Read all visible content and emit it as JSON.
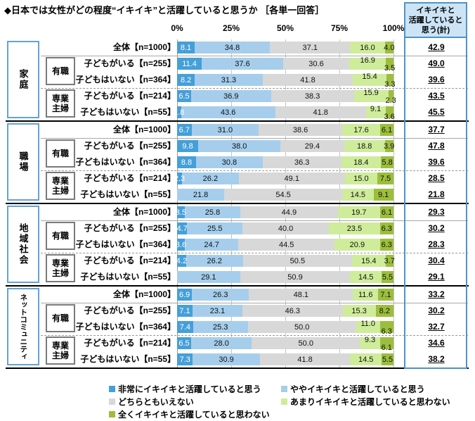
{
  "title": "◆日本では女性がどの程度“イキイキ”と活躍していると思うか ［各単一回答］",
  "axis": {
    "ticks": [
      "0%",
      "25%",
      "50%",
      "75%",
      "100%"
    ]
  },
  "summary": {
    "header_lines": [
      "イキイキと",
      "活躍していると",
      "思う(計)"
    ]
  },
  "colors": {
    "seg1_dark_blue": "#459fd9",
    "seg2_light_blue": "#a6ceec",
    "seg3_gray": "#d8d8d8",
    "seg4_light_green": "#cfec9b",
    "seg5_olive_green": "#9cbe3c",
    "summary_header_bg": "#cce4f6",
    "frame_blue": "#4e93c8"
  },
  "legend": [
    {
      "label": "非常にイキイキと活躍していると思う",
      "color_key": "seg1_dark_blue",
      "col": 0,
      "row": 0
    },
    {
      "label": "ややイキイキと活躍していると思う",
      "color_key": "seg2_light_blue",
      "col": 1,
      "row": 0
    },
    {
      "label": "どちらともいえない",
      "color_key": "seg3_gray",
      "col": 0,
      "row": 1
    },
    {
      "label": "あまりイキイキと活躍していると思わない",
      "color_key": "seg4_light_green",
      "col": 1,
      "row": 1
    },
    {
      "label": "全くイキイキと活躍していると思わない",
      "color_key": "seg5_olive_green",
      "col": 0,
      "row": 2
    }
  ],
  "group_labels": [
    "有職",
    "専業主婦"
  ],
  "chart_data": {
    "type": "bar",
    "orientation": "horizontal-stacked",
    "x_range": [
      0,
      100
    ],
    "grid": true,
    "legend_position": "bottom",
    "series_names": [
      "非常にイキイキと活躍していると思う",
      "ややイキイキと活躍していると思う",
      "どちらともいえない",
      "あまりイキイキと活躍していると思わない",
      "全くイキイキと活躍していると思わない"
    ],
    "sections": [
      {
        "name": "家庭",
        "rows": [
          {
            "label": "全体【n=1000】",
            "values": [
              8.1,
              34.8,
              37.1,
              16.0,
              4.0
            ],
            "total": 42.9,
            "stagger": false
          },
          {
            "label": "子どもがいる【n=255】",
            "values": [
              11.4,
              37.6,
              30.6,
              16.9,
              3.5
            ],
            "total": 49.0,
            "stagger": true
          },
          {
            "label": "子どもはいない【n=364】",
            "values": [
              8.2,
              31.3,
              41.8,
              15.4,
              3.3
            ],
            "total": 39.6,
            "stagger": true
          },
          {
            "label": "子どもがいる【n=214】",
            "values": [
              6.5,
              36.9,
              38.3,
              15.9,
              2.3
            ],
            "total": 43.5,
            "stagger": true
          },
          {
            "label": "子どもはいない【n=55】",
            "values": [
              1.8,
              43.6,
              41.8,
              9.1,
              3.6
            ],
            "total": 45.5,
            "stagger": true
          }
        ]
      },
      {
        "name": "職場",
        "rows": [
          {
            "label": "全体【n=1000】",
            "values": [
              6.7,
              31.0,
              38.6,
              17.6,
              6.1
            ],
            "total": 37.7,
            "stagger": false
          },
          {
            "label": "子どもがいる【n=255】",
            "values": [
              9.8,
              38.0,
              29.4,
              18.8,
              3.9
            ],
            "total": 47.8,
            "stagger": false
          },
          {
            "label": "子どもはいない【n=364】",
            "values": [
              8.8,
              30.8,
              36.3,
              18.4,
              5.8
            ],
            "total": 39.6,
            "stagger": false
          },
          {
            "label": "子どもがいる【n=214】",
            "values": [
              2.3,
              26.2,
              49.1,
              15.0,
              7.5
            ],
            "total": 28.5,
            "stagger": false
          },
          {
            "label": "子どもはいない【n=55】",
            "values": [
              0,
              21.8,
              54.5,
              14.5,
              9.1
            ],
            "total": 21.8,
            "stagger": false
          }
        ]
      },
      {
        "name": "地域社会",
        "rows": [
          {
            "label": "全体【n=1000】",
            "values": [
              3.5,
              25.8,
              44.9,
              19.7,
              6.1
            ],
            "total": 29.3,
            "stagger": false
          },
          {
            "label": "子どもがいる【n=255】",
            "values": [
              4.7,
              25.5,
              40.0,
              23.5,
              6.3
            ],
            "total": 30.2,
            "stagger": false
          },
          {
            "label": "子どもはいない【n=364】",
            "values": [
              3.6,
              24.7,
              44.5,
              20.9,
              6.3
            ],
            "total": 28.3,
            "stagger": false
          },
          {
            "label": "子どもがいる【n=214】",
            "values": [
              4.2,
              26.2,
              50.5,
              15.4,
              3.7
            ],
            "total": 30.4,
            "stagger": false
          },
          {
            "label": "子どもはいない【n=55】",
            "values": [
              0,
              29.1,
              50.9,
              14.5,
              5.5
            ],
            "total": 29.1,
            "stagger": false
          }
        ]
      },
      {
        "name": "ネットコミュニティ",
        "rows": [
          {
            "label": "全体【n=1000】",
            "values": [
              6.9,
              26.3,
              48.1,
              11.6,
              7.1
            ],
            "total": 33.2,
            "stagger": false
          },
          {
            "label": "子どもがいる【n=255】",
            "values": [
              7.1,
              23.1,
              46.3,
              15.3,
              8.2
            ],
            "total": 30.2,
            "stagger": false
          },
          {
            "label": "子どもはいない【n=364】",
            "values": [
              7.4,
              25.3,
              50.0,
              11.0,
              6.3
            ],
            "total": 32.7,
            "stagger": true
          },
          {
            "label": "子どもがいる【n=214】",
            "values": [
              6.5,
              28.0,
              50.0,
              9.3,
              6.1
            ],
            "total": 34.6,
            "stagger": true
          },
          {
            "label": "子どもはいない【n=55】",
            "values": [
              7.3,
              30.9,
              41.8,
              14.5,
              5.5
            ],
            "total": 38.2,
            "stagger": false
          }
        ]
      }
    ]
  }
}
